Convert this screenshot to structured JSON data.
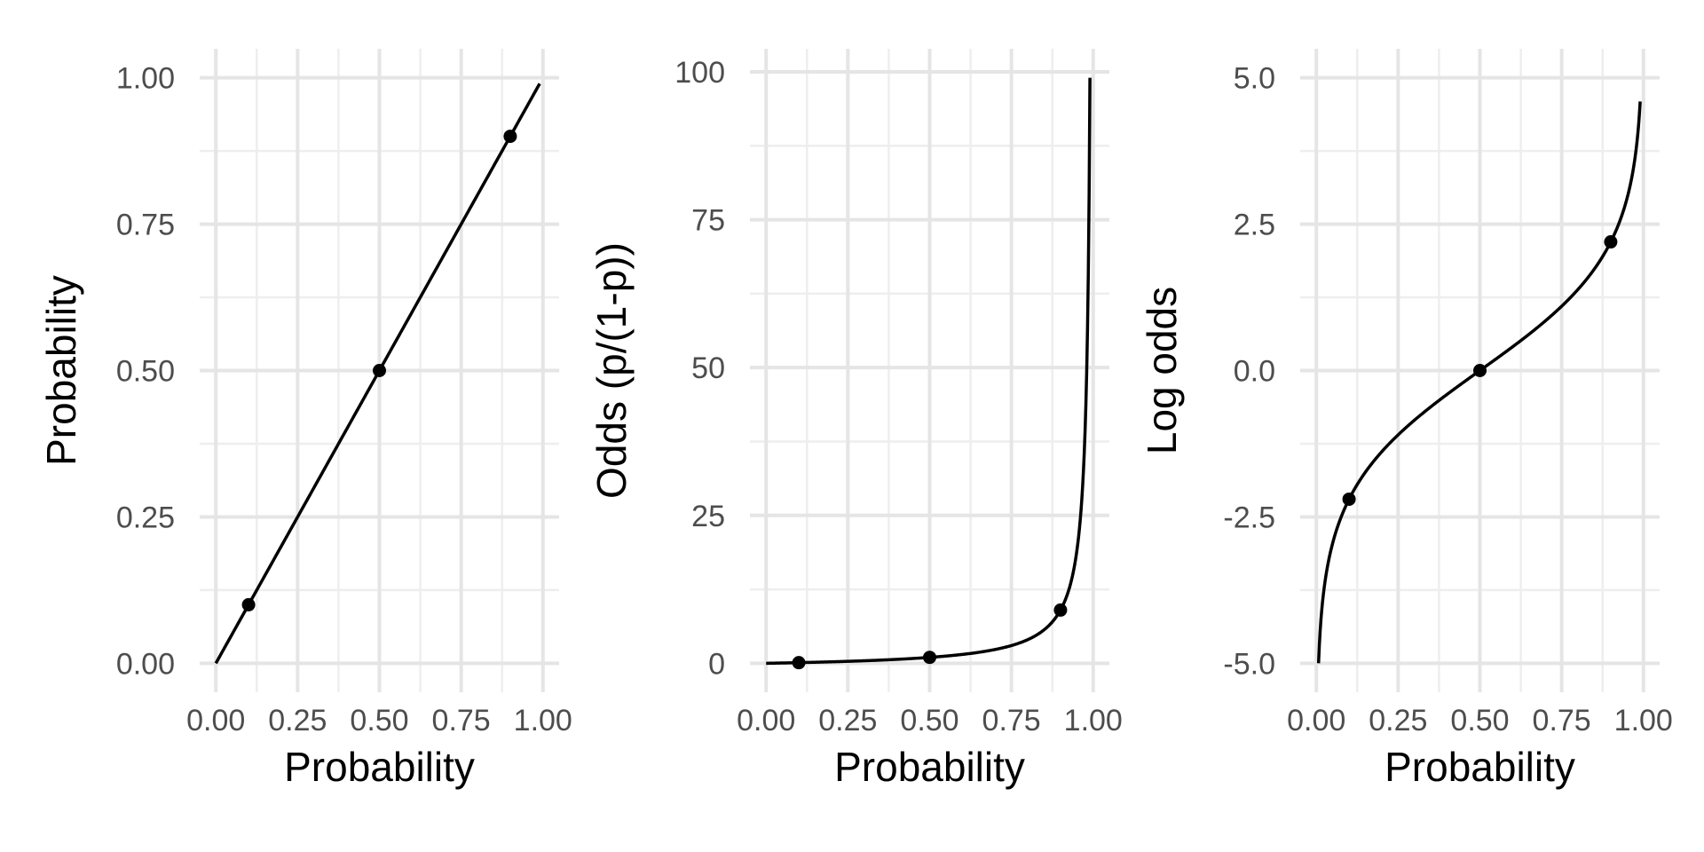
{
  "chart_data": [
    {
      "type": "line",
      "xlabel": "Probability",
      "ylabel": "Probability",
      "function": "p",
      "xlim": [
        0,
        1
      ],
      "ylim": [
        0,
        1
      ],
      "x_ticks": [
        0,
        0.25,
        0.5,
        0.75,
        1
      ],
      "x_tick_labels": [
        "0.00",
        "0.25",
        "0.50",
        "0.75",
        "1.00"
      ],
      "y_ticks": [
        0,
        0.25,
        0.5,
        0.75,
        1
      ],
      "y_tick_labels": [
        "0.00",
        "0.25",
        "0.50",
        "0.75",
        "1.00"
      ],
      "curve_range": [
        0,
        0.99
      ],
      "points": [
        {
          "x": 0.1,
          "y": 0.1
        },
        {
          "x": 0.5,
          "y": 0.5
        },
        {
          "x": 0.9,
          "y": 0.9
        }
      ],
      "grid": true
    },
    {
      "type": "line",
      "xlabel": "Probability",
      "ylabel": "Odds (p/(1-p))",
      "function": "odds",
      "xlim": [
        0,
        1
      ],
      "ylim": [
        0,
        99
      ],
      "x_ticks": [
        0,
        0.25,
        0.5,
        0.75,
        1
      ],
      "x_tick_labels": [
        "0.00",
        "0.25",
        "0.50",
        "0.75",
        "1.00"
      ],
      "y_ticks": [
        0,
        25,
        50,
        75,
        100
      ],
      "y_tick_labels": [
        "0",
        "25",
        "50",
        "75",
        "100"
      ],
      "curve_range": [
        0,
        0.99
      ],
      "points": [
        {
          "x": 0.1,
          "y": 0.111
        },
        {
          "x": 0.5,
          "y": 1
        },
        {
          "x": 0.9,
          "y": 9
        }
      ],
      "grid": true
    },
    {
      "type": "line",
      "xlabel": "Probability",
      "ylabel": "Log odds",
      "function": "logodds",
      "xlim": [
        0,
        1
      ],
      "ylim": [
        -5,
        5
      ],
      "x_ticks": [
        0,
        0.25,
        0.5,
        0.75,
        1
      ],
      "x_tick_labels": [
        "0.00",
        "0.25",
        "0.50",
        "0.75",
        "1.00"
      ],
      "y_ticks": [
        -5,
        -2.5,
        0,
        2.5,
        5
      ],
      "y_tick_labels": [
        "-5.0",
        "-2.5",
        "0.0",
        "2.5",
        "5.0"
      ],
      "curve_range": [
        0.0067,
        0.99
      ],
      "points": [
        {
          "x": 0.1,
          "y": -2.197
        },
        {
          "x": 0.5,
          "y": 0
        },
        {
          "x": 0.9,
          "y": 2.197
        }
      ],
      "grid": true
    }
  ]
}
